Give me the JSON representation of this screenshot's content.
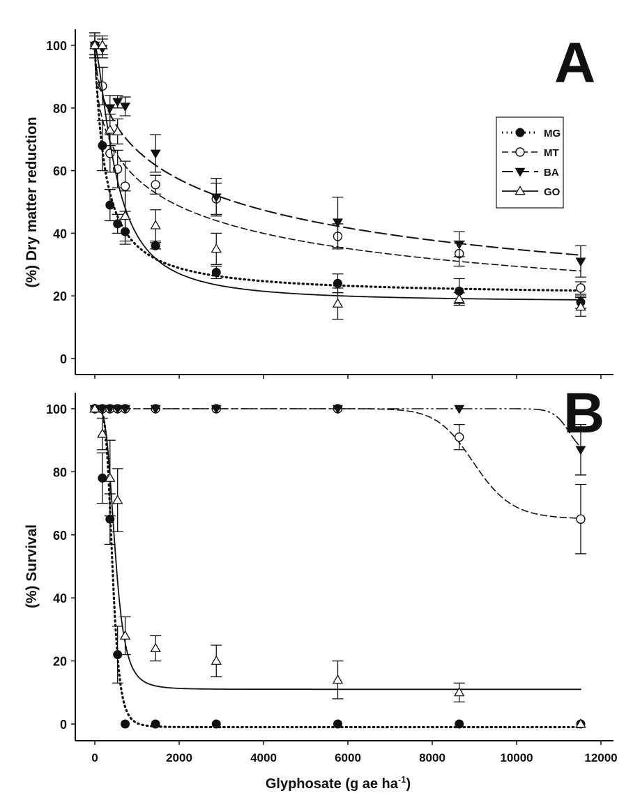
{
  "chart_data": [
    {
      "type": "scatter",
      "panel_label": "A",
      "ylabel": "(%) Dry matter reduction",
      "ylim": [
        0,
        105
      ],
      "yticks": [
        0,
        20,
        40,
        60,
        80,
        100
      ],
      "xlim": [
        -500,
        12000
      ],
      "grid": false,
      "legend": {
        "position": "top-right",
        "entries": [
          "MG",
          "MT",
          "BA",
          "GO"
        ]
      },
      "x": [
        0,
        180,
        360,
        540,
        720,
        1440,
        2880,
        5760,
        8640,
        11520
      ],
      "series": [
        {
          "name": "MG",
          "marker": "filled-circle",
          "line": "dotted",
          "values": [
            100,
            68,
            49,
            43,
            40.5,
            36,
            27.5,
            24,
            21.5,
            18
          ],
          "errors": [
            3,
            8,
            5,
            3,
            4,
            1,
            2,
            3,
            4,
            2
          ],
          "fit": {
            "bottom": 20,
            "top": 100,
            "ed50": 250,
            "slope": 1.0
          }
        },
        {
          "name": "MT",
          "marker": "open-circle",
          "line": "short-dash",
          "values": [
            100,
            87,
            65.5,
            60.5,
            55,
            55.5,
            51,
            39,
            33.5,
            22.5
          ],
          "errors": [
            3,
            6,
            6,
            6,
            8,
            3,
            5,
            4,
            4,
            2
          ],
          "fit": {
            "bottom": 0,
            "top": 100,
            "ed50": 1800,
            "slope": 0.51
          }
        },
        {
          "name": "BA",
          "marker": "filled-down-triangle",
          "line": "long-dash",
          "values": [
            100,
            99,
            80,
            82,
            80.5,
            65.5,
            51.5,
            43.5,
            36.5,
            31
          ],
          "errors": [
            4,
            3,
            4,
            2,
            3,
            6,
            6,
            8,
            4,
            5
          ],
          "fit": {
            "bottom": 0,
            "top": 100,
            "ed50": 3330,
            "slope": 0.57
          }
        },
        {
          "name": "GO",
          "marker": "open-triangle",
          "line": "solid",
          "values": [
            100,
            100,
            73,
            72.5,
            45.5,
            42.5,
            35,
            17.5,
            19,
            16.5
          ],
          "errors": [
            4,
            3,
            5,
            4,
            8,
            5,
            5,
            5,
            2,
            3
          ],
          "fit": {
            "bottom": 18,
            "top": 100,
            "ed50": 500,
            "slope": 1.5
          }
        }
      ]
    },
    {
      "type": "scatter",
      "panel_label": "B",
      "ylabel": "(%) Survival",
      "xlabel": "Glyphosate (g ae ha",
      "xlabel_sup": "-1",
      "xlabel_end": ")",
      "ylim": [
        -5,
        105
      ],
      "yticks": [
        0,
        20,
        40,
        60,
        80,
        100
      ],
      "xticks": [
        0,
        2000,
        4000,
        6000,
        8000,
        10000,
        12000
      ],
      "xlim": [
        -500,
        12000
      ],
      "grid": false,
      "x": [
        0,
        180,
        360,
        540,
        720,
        1440,
        2880,
        5760,
        8640,
        11520
      ],
      "series": [
        {
          "name": "MG",
          "marker": "filled-circle",
          "line": "dotted",
          "values": [
            100,
            78,
            65,
            22,
            0,
            0,
            0,
            0,
            0,
            0
          ],
          "errors": [
            0,
            8,
            8,
            9,
            0,
            0,
            0,
            0,
            0,
            0
          ],
          "fit": {
            "bottom": -1,
            "top": 100,
            "ed50": 420,
            "slope": 5
          }
        },
        {
          "name": "MT",
          "marker": "open-circle",
          "line": "short-dash",
          "values": [
            100,
            100,
            100,
            100,
            100,
            100,
            100,
            100,
            91,
            65
          ],
          "errors": [
            0,
            0,
            0,
            0,
            0,
            0,
            0,
            0,
            4,
            11
          ],
          "fit": {
            "bottom": 65,
            "top": 100,
            "ed50": 9000,
            "slope": 20
          }
        },
        {
          "name": "BA",
          "marker": "filled-down-triangle",
          "line": "dash-dot-dot",
          "values": [
            100,
            100,
            100,
            100,
            100,
            100,
            100,
            100,
            100,
            87
          ],
          "errors": [
            0,
            0,
            0,
            0,
            0,
            0,
            0,
            0,
            0,
            8
          ],
          "fit": {
            "bottom": 85,
            "top": 100,
            "ed50": 11250,
            "slope": 60
          }
        },
        {
          "name": "GO",
          "marker": "open-triangle",
          "line": "solid",
          "values": [
            100,
            92,
            78,
            71,
            28,
            24,
            20,
            14,
            10,
            0
          ],
          "errors": [
            0,
            5,
            12,
            10,
            6,
            4,
            5,
            6,
            3,
            0
          ],
          "fit": {
            "bottom": 11,
            "top": 100,
            "ed50": 480,
            "slope": 4
          }
        }
      ]
    }
  ]
}
